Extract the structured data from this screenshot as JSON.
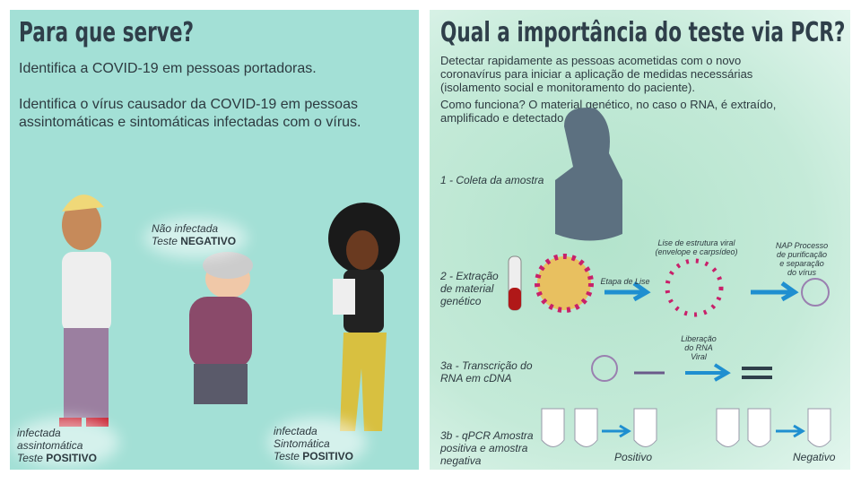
{
  "left": {
    "title": "Para que serve?",
    "line1": "Identifica a COVID-19 em pessoas portadoras.",
    "line2": "Identifica o vírus causador da COVID-19 em pessoas assintomáticas e sintomáticas infectadas com o vírus.",
    "person1": {
      "l1": "infectada",
      "l2": "assintomática",
      "l3": "Teste ",
      "l3b": "POSITIVO"
    },
    "person2": {
      "l1": "Não infectada",
      "l2": "Teste ",
      "l2b": "NEGATIVO"
    },
    "person3": {
      "l1": "infectada",
      "l2": "Sintomática",
      "l3": "Teste ",
      "l3b": "POSITIVO"
    }
  },
  "right": {
    "title": "Qual a importância do teste via PCR?",
    "para1": "Detectar rapidamente as pessoas acometidas com o novo coronavírus para iniciar a aplicação de medidas necessárias (isolamento social e monitoramento do paciente).",
    "para2": "Como funciona? O material genético, no caso o RNA, é extraído, amplificado e detectado.",
    "step1": "1 - Coleta da amostra",
    "step2": "2 - Extração de material genético",
    "step3a": "3a - Transcrição do RNA em cDNA",
    "step3b": "3b - qPCR Amostra positiva e amostra negativa",
    "lise_label": "Etapa de Lise",
    "lise_struct": "Lise de estrutura viral (envelope e carpsídeo)",
    "nap": "NAP Processo de purificação e separação do vírus",
    "rna_release": "Liberação do RNA Viral",
    "positive": "Positivo",
    "negative": "Negativo"
  },
  "colors": {
    "left_bg": "#a3e0d6",
    "right_bg": "#c4ead8",
    "title": "#2f3f4a",
    "arrow": "#1f8fd0",
    "virus": "#c8206a"
  }
}
